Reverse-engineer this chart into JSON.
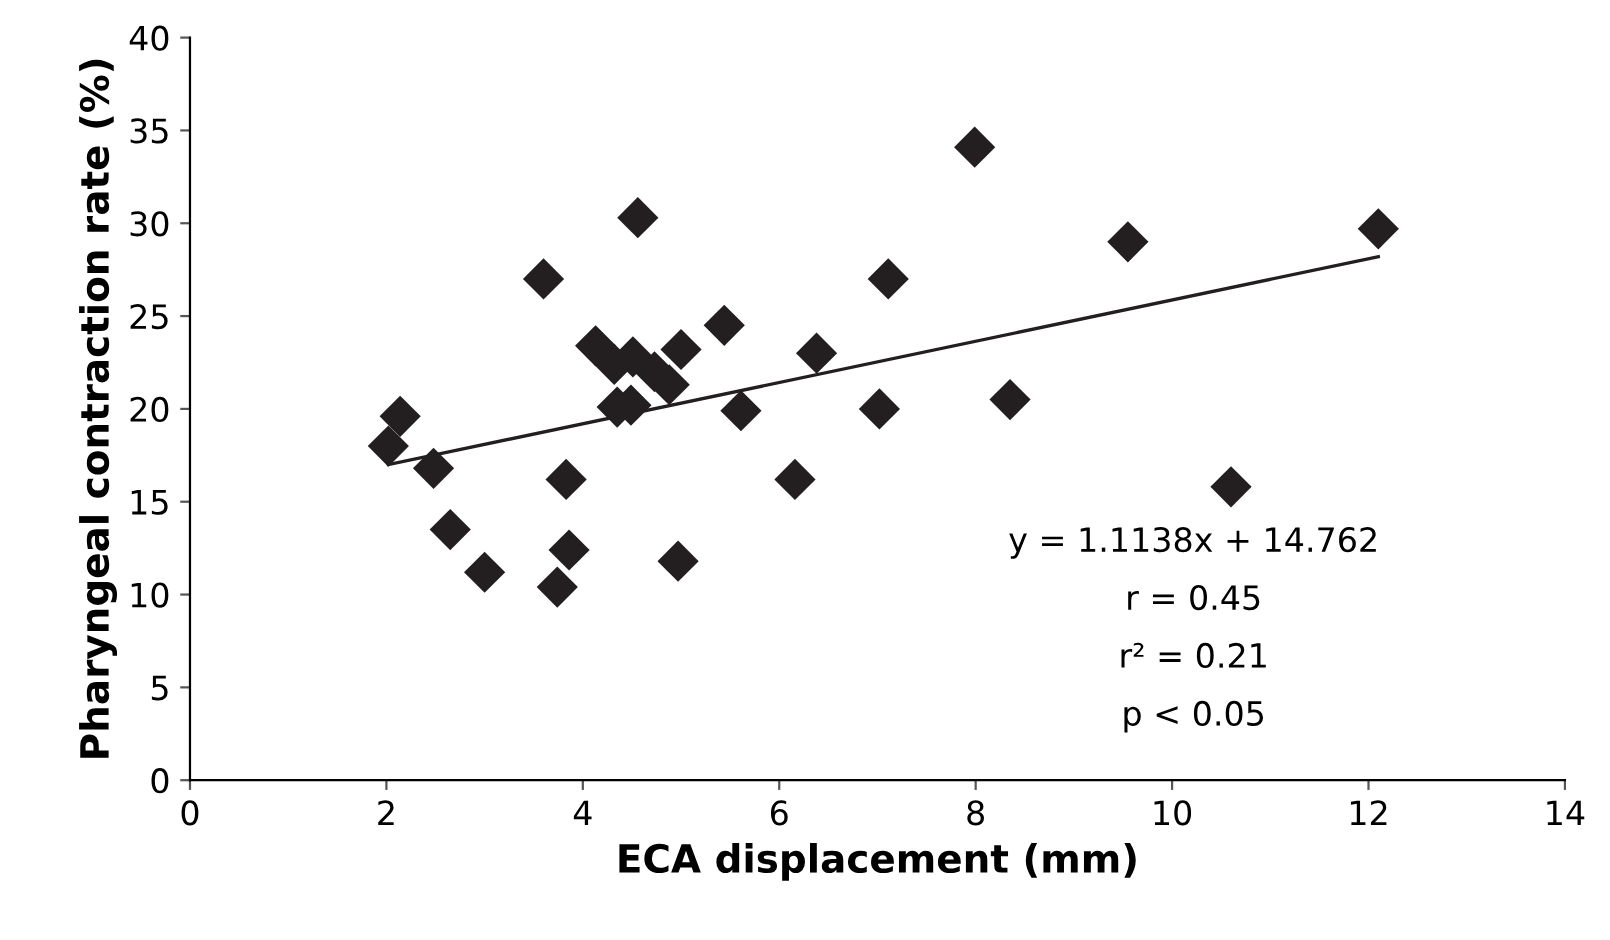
{
  "chart_data": {
    "type": "scatter",
    "xlabel": "ECA displacement (mm)",
    "ylabel": "Pharyngeal contraction rate (%)",
    "xlim": [
      0,
      14
    ],
    "xticks": [
      0,
      2,
      4,
      6,
      8,
      10,
      12,
      14
    ],
    "ylim": [
      0,
      40
    ],
    "yticks": [
      0,
      5,
      10,
      15,
      20,
      25,
      30,
      35,
      40
    ],
    "grid": false,
    "series": [
      {
        "marker": "diamond",
        "color": "#231f20",
        "x": [
          2.02,
          2.14,
          2.48,
          2.65,
          3.0,
          3.6,
          3.74,
          3.83,
          3.86,
          4.56,
          4.13,
          4.32,
          4.51,
          4.73,
          4.88,
          4.35,
          4.49,
          5.0,
          4.97,
          5.44,
          5.61,
          6.16,
          6.38,
          7.02,
          7.11,
          7.99,
          9.55,
          12.1,
          8.35,
          10.6
        ],
        "values": [
          18.0,
          19.6,
          16.8,
          13.5,
          11.2,
          27.0,
          10.4,
          16.2,
          12.4,
          30.3,
          23.4,
          22.4,
          22.8,
          22.0,
          21.3,
          20.1,
          20.2,
          23.2,
          11.8,
          24.5,
          19.9,
          16.2,
          23.0,
          20.0,
          27.0,
          34.1,
          29.0,
          29.7,
          20.5,
          15.8
        ]
      },
      {
        "type": "line",
        "marker": "none",
        "color": "#231f20",
        "x": [
          2.02,
          12.1
        ],
        "values": [
          17.0,
          28.2
        ]
      }
    ],
    "annotations": [
      "y = 1.1138x + 14.762",
      "r = 0.45",
      "r² = 0.21",
      "p < 0.05"
    ]
  }
}
